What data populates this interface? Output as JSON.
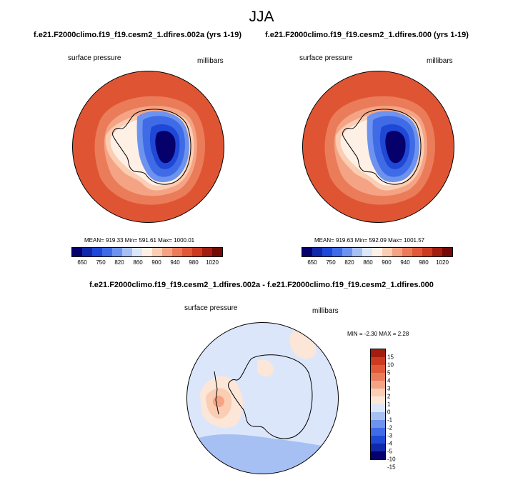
{
  "title": "JJA",
  "panels": [
    {
      "case": "f.e21.F2000climo.f19_f19.cesm2_1.dfires.002a (yrs 1-19)",
      "variable": "surface pressure",
      "units": "millibars",
      "stats": "MEAN= 919.33  Min= 591.61  Max= 1000.01"
    },
    {
      "case": "f.e21.F2000climo.f19_f19.cesm2_1.dfires.000 (yrs 1-19)",
      "variable": "surface pressure",
      "units": "millibars",
      "stats": "MEAN= 919.63  Min= 592.09  Max= 1001.57"
    }
  ],
  "diff_panel": {
    "title": "f.e21.F2000climo.f19_f19.cesm2_1.dfires.002a - f.e21.F2000climo.f19_f19.cesm2_1.dfires.000",
    "variable": "surface pressure",
    "units": "millibars",
    "stats": "MIN = -2.30 MAX =  2.28"
  },
  "colorbar_abs": {
    "colors": [
      "#05006b",
      "#1029a8",
      "#1f48d6",
      "#3f6be6",
      "#6e93ee",
      "#a7c0f4",
      "#dce6fa",
      "#fff0e6",
      "#fbcdb3",
      "#f4a484",
      "#eb7c5a",
      "#e05a39",
      "#cc3a20",
      "#a21c10",
      "#730a06"
    ],
    "tick_labels": [
      "650",
      "750",
      "820",
      "860",
      "900",
      "940",
      "980",
      "1020"
    ]
  },
  "colorbar_diff": {
    "colors": [
      "#05006b",
      "#1029a8",
      "#1f48d6",
      "#3f6be6",
      "#6e93ee",
      "#a7c0f4",
      "#dce6fa",
      "#fbe6d8",
      "#fbcdb3",
      "#f4a484",
      "#eb7c5a",
      "#e05a39",
      "#cc3a20",
      "#a21c10"
    ],
    "tick_labels": [
      "15",
      "10",
      "5",
      "4",
      "3",
      "2",
      "1",
      "0",
      "-1",
      "-2",
      "-3",
      "-4",
      "-5",
      "-10",
      "-15"
    ]
  }
}
